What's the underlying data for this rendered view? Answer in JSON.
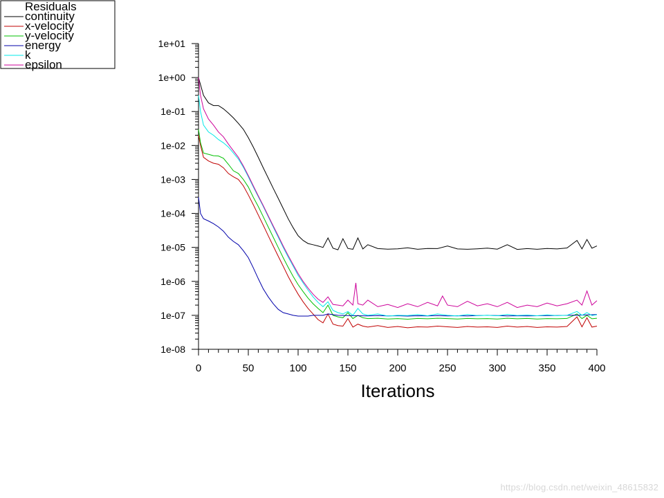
{
  "chart_data": {
    "type": "line",
    "title": "",
    "xlabel": "Iterations",
    "ylabel": "",
    "xscale": "linear",
    "yscale": "log",
    "xlim": [
      0,
      400
    ],
    "ylim": [
      1e-08,
      10
    ],
    "xticks": [
      0,
      50,
      100,
      150,
      200,
      250,
      300,
      350,
      400
    ],
    "xtick_labels": [
      "0",
      "50",
      "100",
      "150",
      "200",
      "250",
      "300",
      "350",
      "400"
    ],
    "yticks": [
      1e-08,
      1e-07,
      1e-06,
      1e-05,
      0.0001,
      0.001,
      0.01,
      0.1,
      1,
      10
    ],
    "ytick_labels": [
      "1e-08",
      "1e-07",
      "1e-06",
      "1e-05",
      "1e-04",
      "1e-03",
      "1e-02",
      "1e-01",
      "1e+00",
      "1e+01"
    ],
    "legend": {
      "title": "Residuals",
      "placement": "top-left"
    },
    "series": [
      {
        "name": "continuity",
        "color": "#000000",
        "x": [
          0,
          5,
          10,
          15,
          20,
          25,
          30,
          35,
          40,
          45,
          50,
          55,
          60,
          65,
          70,
          75,
          80,
          85,
          90,
          95,
          100,
          105,
          110,
          115,
          120,
          125,
          130,
          135,
          140,
          145,
          150,
          155,
          160,
          165,
          170,
          180,
          190,
          200,
          210,
          220,
          230,
          240,
          250,
          260,
          270,
          280,
          290,
          300,
          310,
          320,
          330,
          340,
          350,
          360,
          370,
          380,
          385,
          390,
          395,
          400
        ],
        "values": [
          1.0,
          0.3,
          0.18,
          0.15,
          0.15,
          0.12,
          0.09,
          0.065,
          0.045,
          0.03,
          0.017,
          0.009,
          0.0045,
          0.0022,
          0.0011,
          0.00055,
          0.00028,
          0.00014,
          7e-05,
          3.8e-05,
          2.2e-05,
          1.6e-05,
          1.3e-05,
          1.2e-05,
          1.1e-05,
          1e-05,
          1.9e-05,
          9.5e-06,
          8.5e-06,
          1.8e-05,
          9.3e-06,
          8.8e-06,
          1.9e-05,
          9e-06,
          1.2e-05,
          9.2e-06,
          8.9e-06,
          9.1e-06,
          9.7e-06,
          8.8e-06,
          9.3e-06,
          9.2e-06,
          1.1e-05,
          9e-06,
          8.8e-06,
          9.1e-06,
          9.5e-06,
          8.9e-06,
          1.2e-05,
          8.7e-06,
          9.2e-06,
          8.8e-06,
          9.3e-06,
          9e-06,
          9.6e-06,
          1.6e-05,
          9e-06,
          1.7e-05,
          9.5e-06,
          1.1e-05
        ]
      },
      {
        "name": "x-velocity",
        "color": "#c00000",
        "x": [
          0,
          2,
          5,
          10,
          15,
          20,
          25,
          30,
          35,
          40,
          45,
          50,
          55,
          60,
          65,
          70,
          75,
          80,
          85,
          90,
          95,
          100,
          105,
          110,
          115,
          120,
          125,
          130,
          135,
          140,
          145,
          150,
          155,
          160,
          165,
          170,
          180,
          190,
          200,
          210,
          220,
          230,
          240,
          250,
          260,
          270,
          280,
          290,
          300,
          310,
          320,
          330,
          340,
          350,
          360,
          370,
          380,
          385,
          390,
          395,
          400
        ],
        "values": [
          0.02,
          0.01,
          0.0045,
          0.0035,
          0.003,
          0.0028,
          0.0022,
          0.0015,
          0.0012,
          0.001,
          0.00065,
          0.00035,
          0.00018,
          9e-05,
          4.5e-05,
          2.2e-05,
          1.1e-05,
          5.5e-06,
          2.8e-06,
          1.4e-06,
          7.5e-07,
          4.2e-07,
          2.5e-07,
          1.6e-07,
          1.1e-07,
          7.5e-08,
          6e-08,
          1.1e-07,
          5.5e-08,
          5e-08,
          4.8e-08,
          8e-08,
          4.5e-08,
          5.5e-08,
          4.8e-08,
          4.5e-08,
          5e-08,
          4.4e-08,
          4.7e-08,
          4.3e-08,
          4.6e-08,
          4.5e-08,
          4.8e-08,
          4.6e-08,
          4.4e-08,
          4.7e-08,
          4.5e-08,
          4.6e-08,
          4.4e-08,
          4.8e-08,
          4.5e-08,
          4.7e-08,
          4.4e-08,
          4.6e-08,
          4.5e-08,
          4.7e-08,
          9e-08,
          4.6e-08,
          8.5e-08,
          4.5e-08,
          4.8e-08
        ]
      },
      {
        "name": "y-velocity",
        "color": "#00c000",
        "x": [
          0,
          2,
          5,
          10,
          15,
          20,
          25,
          30,
          35,
          40,
          45,
          50,
          55,
          60,
          65,
          70,
          75,
          80,
          85,
          90,
          95,
          100,
          105,
          110,
          115,
          120,
          125,
          130,
          135,
          140,
          145,
          150,
          155,
          160,
          165,
          170,
          180,
          190,
          200,
          210,
          220,
          230,
          240,
          250,
          260,
          270,
          280,
          290,
          300,
          310,
          320,
          330,
          340,
          350,
          360,
          370,
          380,
          385,
          390,
          395,
          400
        ],
        "values": [
          0.03,
          0.012,
          0.006,
          0.0055,
          0.005,
          0.0049,
          0.0042,
          0.0028,
          0.0018,
          0.0015,
          0.001,
          0.0006,
          0.0003,
          0.00016,
          8e-05,
          4e-05,
          2e-05,
          1e-05,
          5e-06,
          2.6e-06,
          1.4e-06,
          8e-07,
          5e-07,
          3.2e-07,
          2.2e-07,
          1.6e-07,
          1.2e-07,
          2e-07,
          1e-07,
          9e-08,
          8.5e-08,
          1.2e-07,
          8e-08,
          1e-07,
          8.5e-08,
          8e-08,
          8.2e-08,
          7.8e-08,
          8e-08,
          7.7e-08,
          8.1e-08,
          7.9e-08,
          8.2e-08,
          8e-08,
          7.8e-08,
          8.1e-08,
          7.9e-08,
          8e-08,
          7.8e-08,
          8.2e-08,
          7.9e-08,
          8.1e-08,
          7.8e-08,
          8e-08,
          7.9e-08,
          8.1e-08,
          1.1e-07,
          8e-08,
          1e-07,
          7.9e-08,
          8.2e-08
        ]
      },
      {
        "name": "energy",
        "color": "#0000aa",
        "x": [
          0,
          2,
          5,
          10,
          15,
          20,
          25,
          30,
          35,
          40,
          45,
          50,
          55,
          60,
          65,
          70,
          75,
          80,
          85,
          90,
          95,
          100,
          105,
          110,
          115,
          120,
          125,
          130,
          140,
          150,
          160,
          170,
          180,
          190,
          200,
          210,
          220,
          230,
          240,
          250,
          260,
          270,
          280,
          290,
          300,
          310,
          320,
          330,
          340,
          350,
          360,
          370,
          380,
          390,
          400
        ],
        "values": [
          0.0003,
          0.0001,
          7e-05,
          6e-05,
          5e-05,
          4e-05,
          3e-05,
          2e-05,
          1.5e-05,
          1.2e-05,
          8e-06,
          5e-06,
          2.5e-06,
          1.2e-06,
          6e-07,
          3.5e-07,
          2.2e-07,
          1.5e-07,
          1.2e-07,
          1.1e-07,
          1e-07,
          9.5e-08,
          9.5e-08,
          9.5e-08,
          1e-07,
          1e-07,
          1e-07,
          1.1e-07,
          1e-07,
          9.8e-08,
          9.7e-08,
          9.6e-08,
          9.8e-08,
          9.6e-08,
          9.7e-08,
          9.5e-08,
          9.7e-08,
          9.6e-08,
          9.8e-08,
          9.6e-08,
          9.7e-08,
          9.6e-08,
          9.8e-08,
          1e-07,
          9.8e-08,
          9.6e-08,
          9.7e-08,
          9.6e-08,
          9.7e-08,
          9.8e-08,
          9.9e-08,
          1e-07,
          1.01e-07,
          1.03e-07,
          1.05e-07
        ]
      },
      {
        "name": "k",
        "color": "#00e8e8",
        "x": [
          0,
          2,
          5,
          10,
          15,
          20,
          25,
          30,
          35,
          40,
          45,
          50,
          55,
          60,
          65,
          70,
          75,
          80,
          85,
          90,
          95,
          100,
          105,
          110,
          115,
          120,
          125,
          130,
          135,
          140,
          145,
          150,
          155,
          160,
          165,
          170,
          180,
          190,
          200,
          210,
          220,
          230,
          240,
          250,
          260,
          270,
          280,
          290,
          300,
          310,
          320,
          330,
          340,
          350,
          360,
          370,
          380,
          385,
          390,
          395,
          400
        ],
        "values": [
          0.3,
          0.1,
          0.04,
          0.025,
          0.02,
          0.015,
          0.012,
          0.009,
          0.006,
          0.004,
          0.0023,
          0.0012,
          0.0006,
          0.00031,
          0.00016,
          8e-05,
          4e-05,
          2e-05,
          1e-05,
          5.2e-06,
          2.8e-06,
          1.5e-06,
          9e-07,
          5.5e-07,
          3.5e-07,
          2.4e-07,
          1.8e-07,
          2.5e-07,
          1.4e-07,
          1.2e-07,
          1.1e-07,
          1.3e-07,
          1e-07,
          1.6e-07,
          1.1e-07,
          1e-07,
          1.1e-07,
          9.5e-08,
          1e-07,
          9.8e-08,
          1.05e-07,
          9.7e-08,
          1.1e-07,
          1e-07,
          9.6e-08,
          1.05e-07,
          9.8e-08,
          1e-07,
          9.7e-08,
          1.06e-07,
          9.9e-08,
          1.02e-07,
          9.7e-08,
          1.03e-07,
          9.8e-08,
          1e-07,
          1.3e-07,
          1e-07,
          1.2e-07,
          9.9e-08,
          1.04e-07
        ]
      },
      {
        "name": "epsilon",
        "color": "#cc0099",
        "x": [
          0,
          2,
          5,
          10,
          15,
          20,
          25,
          30,
          35,
          40,
          45,
          50,
          55,
          60,
          65,
          70,
          75,
          80,
          85,
          90,
          95,
          100,
          105,
          110,
          115,
          120,
          125,
          130,
          135,
          140,
          145,
          150,
          155,
          158,
          160,
          165,
          170,
          180,
          190,
          200,
          210,
          220,
          230,
          240,
          245,
          250,
          260,
          270,
          280,
          290,
          300,
          310,
          320,
          330,
          340,
          350,
          360,
          370,
          380,
          385,
          390,
          395,
          400
        ],
        "values": [
          1.0,
          0.3,
          0.12,
          0.06,
          0.04,
          0.025,
          0.018,
          0.011,
          0.007,
          0.0045,
          0.0025,
          0.0013,
          0.00065,
          0.00033,
          0.00017,
          8.5e-05,
          4.3e-05,
          2.2e-05,
          1.1e-05,
          5.8e-06,
          3.1e-06,
          1.7e-06,
          1e-06,
          6.3e-07,
          4.2e-07,
          3e-07,
          2.4e-07,
          3.5e-07,
          2.1e-07,
          2e-07,
          1.9e-07,
          2.8e-07,
          2e-07,
          9e-07,
          2.2e-07,
          2e-07,
          2.8e-07,
          1.8e-07,
          2.1e-07,
          1.7e-07,
          2.2e-07,
          1.8e-07,
          2.4e-07,
          1.9e-07,
          3.7e-07,
          2e-07,
          1.8e-07,
          2.6e-07,
          1.9e-07,
          2.2e-07,
          1.8e-07,
          2.4e-07,
          1.7e-07,
          2e-07,
          1.8e-07,
          2.3e-07,
          1.9e-07,
          2.2e-07,
          2.8e-07,
          2e-07,
          5.2e-07,
          2e-07,
          2.7e-07
        ]
      }
    ]
  },
  "watermark": "https://blog.csdn.net/weixin_48615832"
}
